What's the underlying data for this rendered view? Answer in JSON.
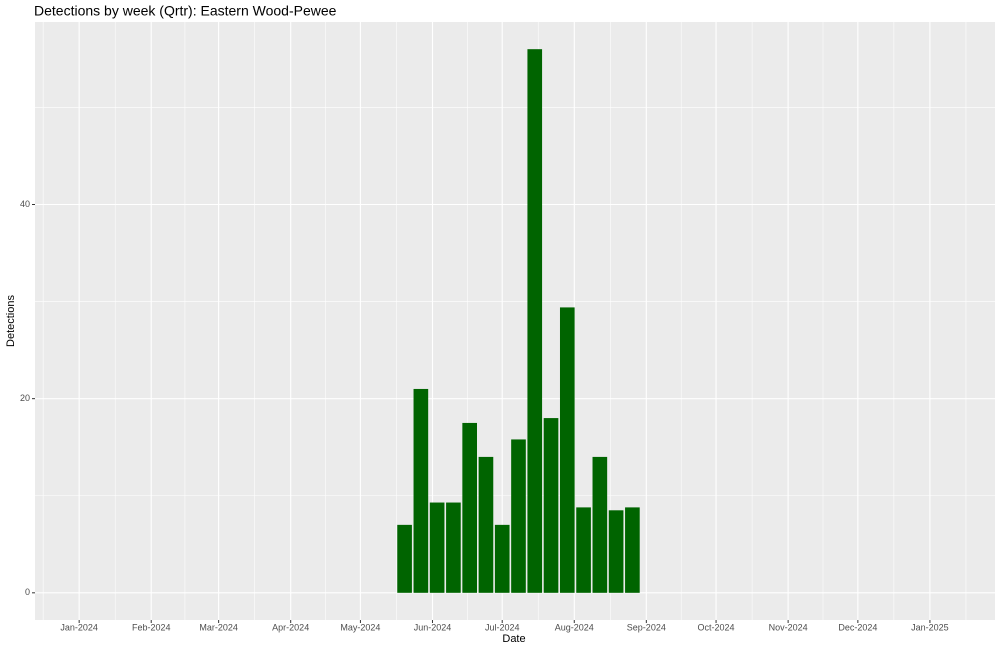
{
  "chart_data": {
    "type": "bar",
    "title": "Detections by week (Qrtr): Eastern Wood-Pewee",
    "xlabel": "Date",
    "ylabel": "Detections",
    "x": [
      "2024-05-20",
      "2024-05-27",
      "2024-06-03",
      "2024-06-10",
      "2024-06-17",
      "2024-06-24",
      "2024-07-01",
      "2024-07-08",
      "2024-07-15",
      "2024-07-22",
      "2024-07-29",
      "2024-08-05",
      "2024-08-12",
      "2024-08-19",
      "2024-08-26"
    ],
    "values": [
      7,
      21,
      9.3,
      9.3,
      17.5,
      14,
      7,
      15.8,
      56,
      18,
      29.4,
      8.8,
      14,
      8.5,
      8.8
    ],
    "color": "#006400",
    "xlim": [
      "2023-12-13",
      "2025-01-29"
    ],
    "xticks": [
      {
        "value": "2024-01",
        "label": "Jan-2024"
      },
      {
        "value": "2024-02",
        "label": "Feb-2024"
      },
      {
        "value": "2024-03",
        "label": "Mar-2024"
      },
      {
        "value": "2024-04",
        "label": "Apr-2024"
      },
      {
        "value": "2024-05",
        "label": "May-2024"
      },
      {
        "value": "2024-06",
        "label": "Jun-2024"
      },
      {
        "value": "2024-07",
        "label": "Jul-2024"
      },
      {
        "value": "2024-08",
        "label": "Aug-2024"
      },
      {
        "value": "2024-09",
        "label": "Sep-2024"
      },
      {
        "value": "2024-10",
        "label": "Oct-2024"
      },
      {
        "value": "2024-11",
        "label": "Nov-2024"
      },
      {
        "value": "2024-12",
        "label": "Dec-2024"
      },
      {
        "value": "2025-01",
        "label": "Jan-2025"
      }
    ],
    "ylim": [
      -2.8,
      58.8
    ],
    "yticks": [
      0,
      20,
      40
    ],
    "grid": true
  }
}
